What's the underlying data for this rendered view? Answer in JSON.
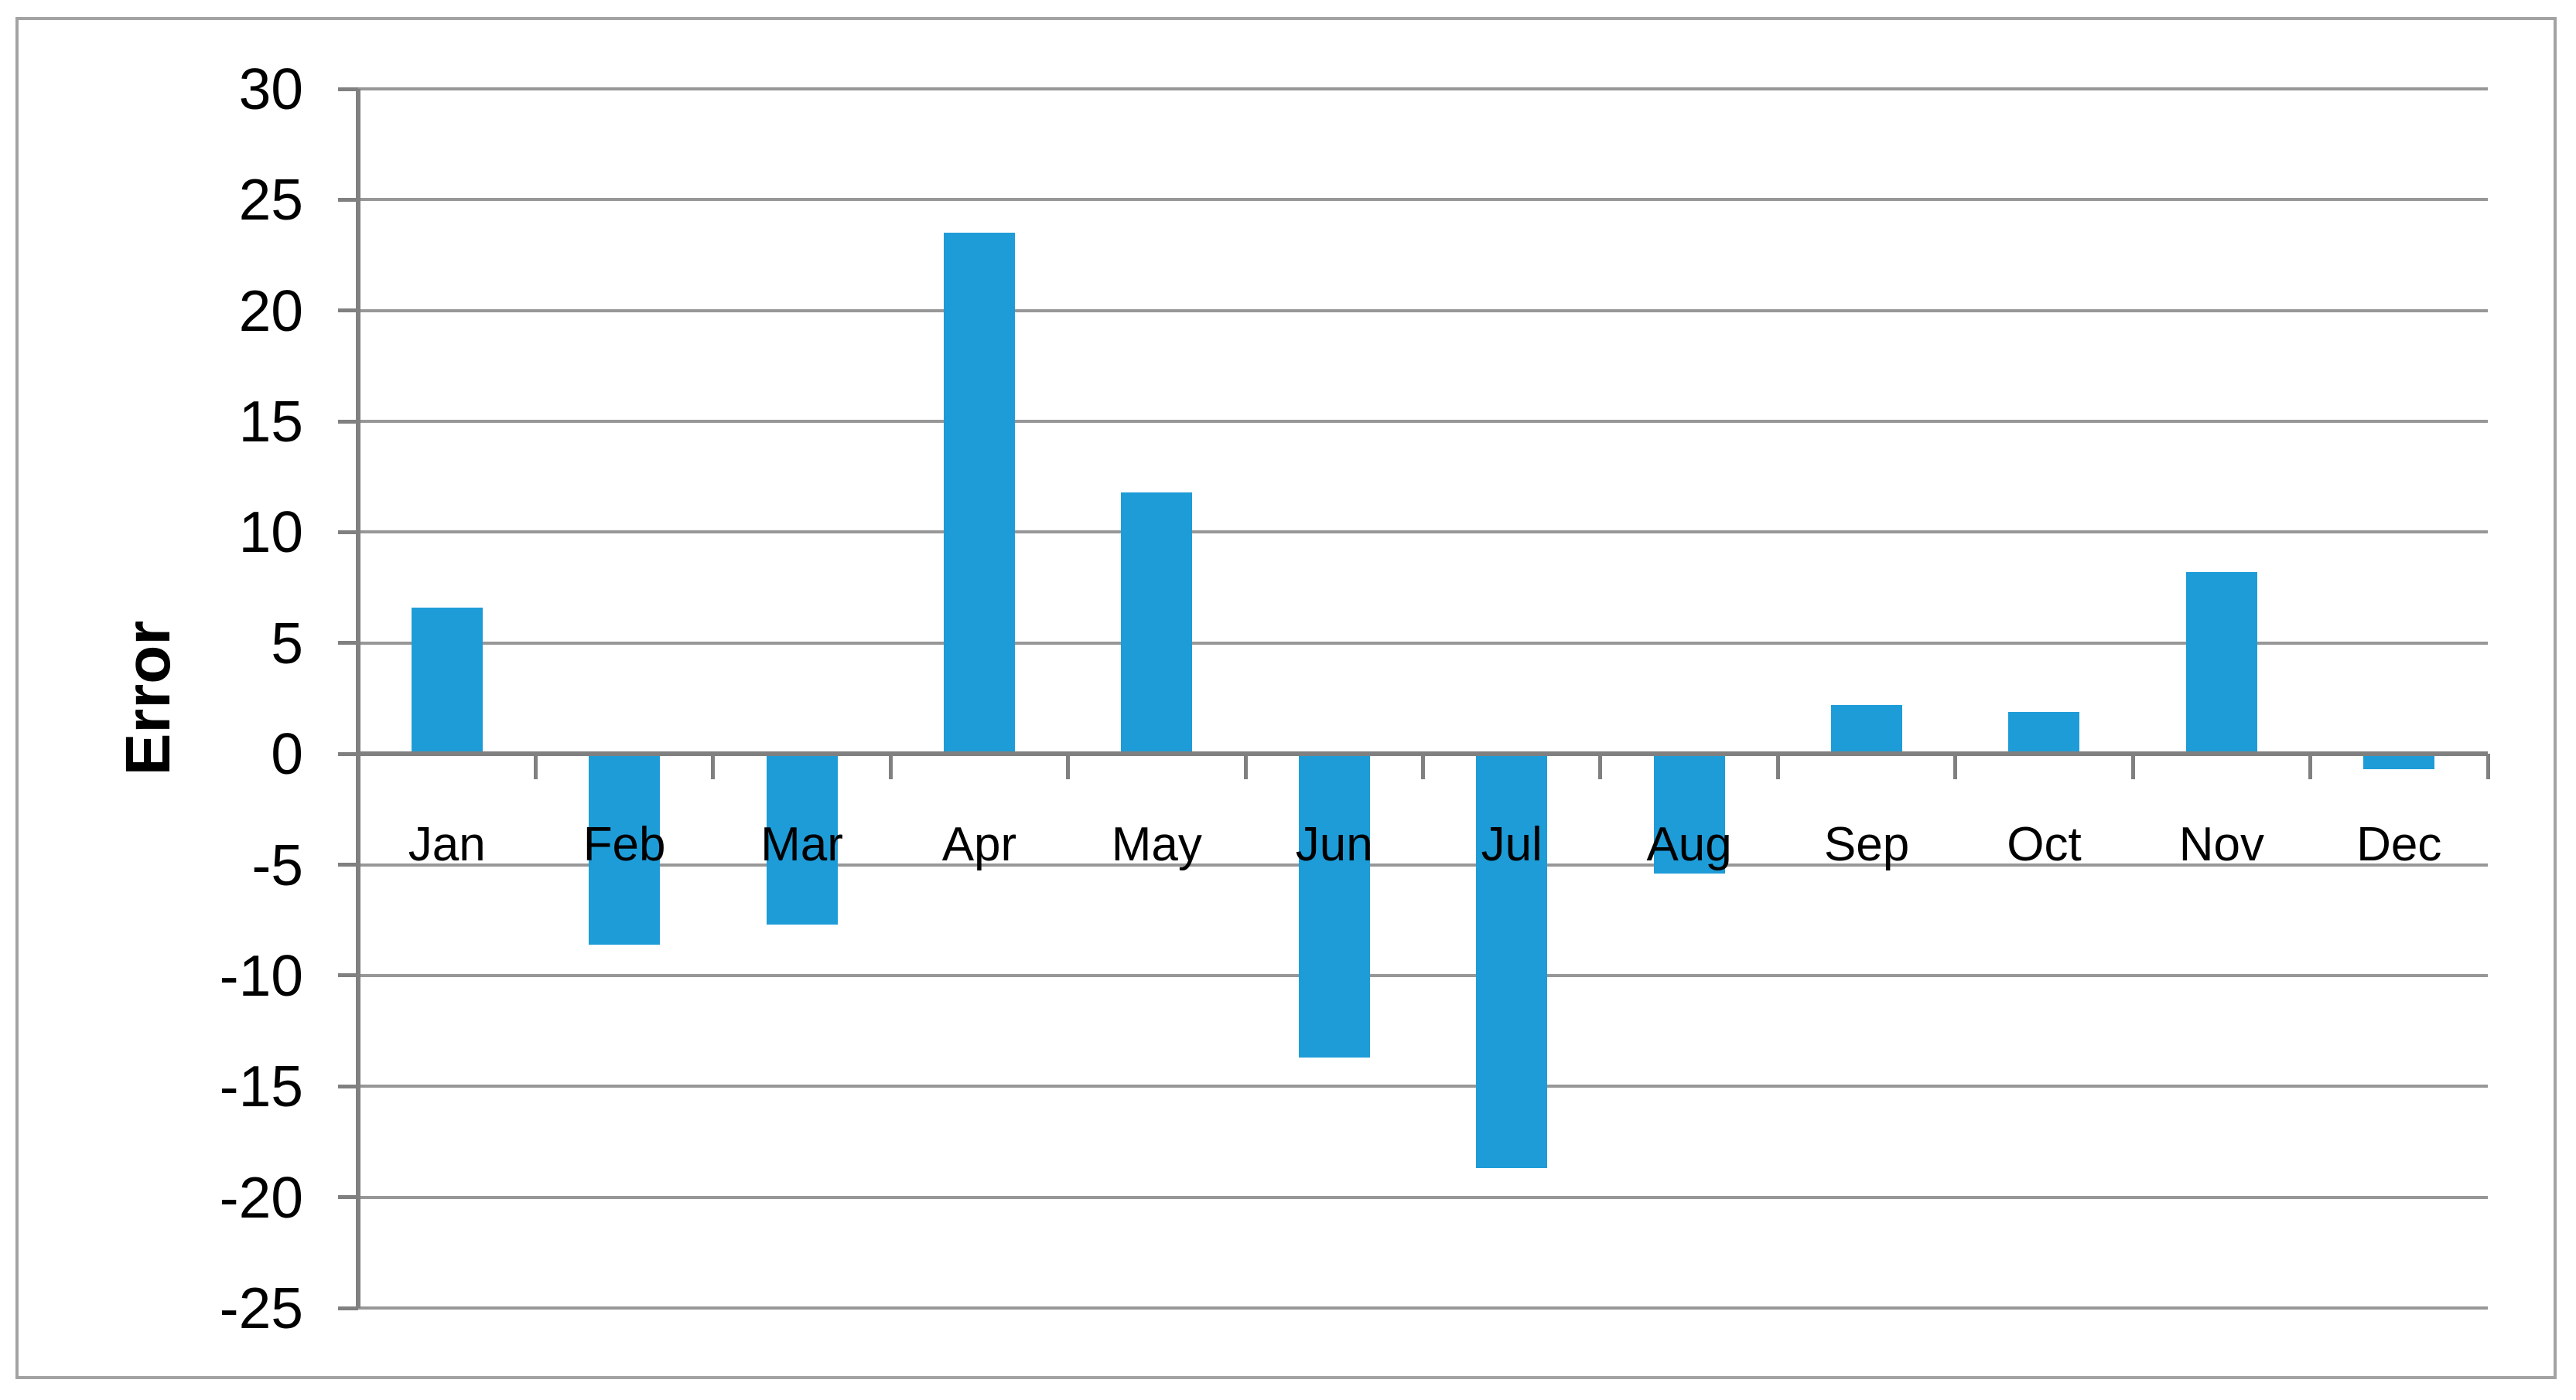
{
  "chart_data": {
    "type": "bar",
    "title": "",
    "xlabel": "",
    "ylabel": "Error",
    "categories": [
      "Jan",
      "Feb",
      "Mar",
      "Apr",
      "May",
      "Jun",
      "Jul",
      "Aug",
      "Sep",
      "Oct",
      "Nov",
      "Dec"
    ],
    "values": [
      6.6,
      -8.6,
      -7.7,
      23.5,
      11.8,
      -13.7,
      -18.7,
      -5.4,
      2.2,
      1.9,
      8.2,
      -0.7
    ],
    "series": [
      {
        "name": "Error",
        "values": [
          6.6,
          -8.6,
          -7.7,
          23.5,
          11.8,
          -13.7,
          -18.7,
          -5.4,
          2.2,
          1.9,
          8.2,
          -0.7
        ]
      }
    ],
    "ylim": [
      -25,
      30
    ],
    "ytick_step": 5,
    "ytick_labels": [
      "30",
      "25",
      "20",
      "15",
      "10",
      "5",
      "0",
      "-5",
      "-10",
      "-15",
      "-20",
      "-25"
    ],
    "grid": "horizontal major gridlines",
    "legend_position": "none",
    "colors": {
      "bar": "#1e9cd8",
      "gridline": "#979797",
      "axis": "#808080",
      "chart_border": "#a3a3a3",
      "background": "#ffffff",
      "text": "#000000"
    }
  }
}
